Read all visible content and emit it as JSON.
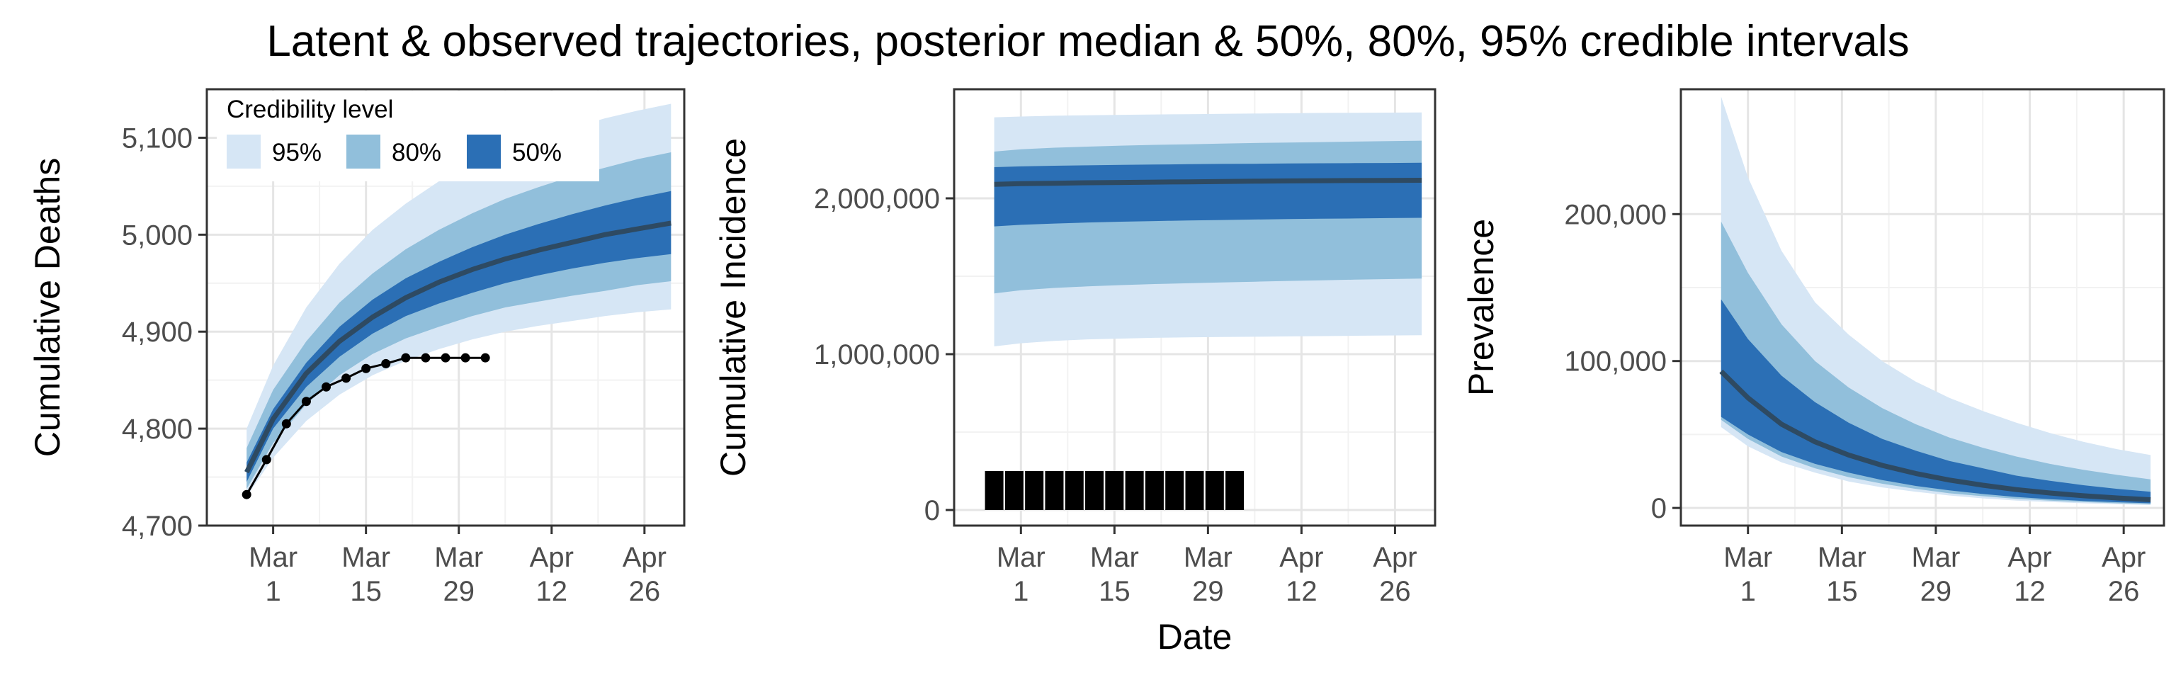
{
  "title": "Latent & observed trajectories, posterior median & 50%, 80%, 95% credible intervals",
  "colors": {
    "band_95": "#d6e6f5",
    "band_80": "#91bfdb",
    "band_50": "#2b6fb5",
    "median": "#2e4a62",
    "observed": "#000000",
    "grid_major": "#e5e5e5",
    "grid_minor": "#f2f2f2",
    "panel_border": "#333333"
  },
  "x_axis": {
    "title": "Date",
    "tick_labels": [
      {
        "line1": "Mar",
        "line2": "1"
      },
      {
        "line1": "Mar",
        "line2": "15"
      },
      {
        "line1": "Mar",
        "line2": "29"
      },
      {
        "line1": "Apr",
        "line2": "12"
      },
      {
        "line1": "Apr",
        "line2": "26"
      }
    ]
  },
  "legend": {
    "title": "Credibility level",
    "placement": "top-left of first panel",
    "items": [
      {
        "label": "95%",
        "color": "#d6e6f5"
      },
      {
        "label": "80%",
        "color": "#91bfdb"
      },
      {
        "label": "50%",
        "color": "#2b6fb5"
      }
    ]
  },
  "chart_data": [
    {
      "type": "area",
      "ylabel": "Cumulative Deaths",
      "xlim": [
        "2020-02-20",
        "2020-05-02"
      ],
      "ylim": [
        4700,
        5150
      ],
      "x_ticks": [
        "2020-03-01",
        "2020-03-15",
        "2020-03-29",
        "2020-04-12",
        "2020-04-26"
      ],
      "y_ticks": [
        4700,
        4800,
        4900,
        5000,
        5100
      ],
      "y_tick_labels": [
        "4,700",
        "4,800",
        "4,900",
        "5,000",
        "5,100"
      ],
      "x": [
        "2020-02-26",
        "2020-03-01",
        "2020-03-06",
        "2020-03-11",
        "2020-03-16",
        "2020-03-21",
        "2020-03-26",
        "2020-03-31",
        "2020-04-05",
        "2020-04-10",
        "2020-04-15",
        "2020-04-20",
        "2020-04-25",
        "2020-04-30"
      ],
      "bands": {
        "95": {
          "lo": [
            4730,
            4770,
            4808,
            4835,
            4855,
            4870,
            4882,
            4892,
            4900,
            4906,
            4911,
            4916,
            4920,
            4923
          ],
          "hi": [
            4800,
            4865,
            4925,
            4970,
            5005,
            5032,
            5055,
            5073,
            5088,
            5100,
            5110,
            5120,
            5128,
            5135
          ]
        },
        "80": {
          "lo": [
            4738,
            4785,
            4825,
            4855,
            4877,
            4893,
            4905,
            4916,
            4925,
            4931,
            4937,
            4942,
            4948,
            4952
          ],
          "hi": [
            4780,
            4840,
            4890,
            4930,
            4960,
            4985,
            5005,
            5022,
            5037,
            5049,
            5060,
            5069,
            5078,
            5085
          ]
        },
        "50": {
          "lo": [
            4745,
            4800,
            4843,
            4874,
            4898,
            4916,
            4929,
            4940,
            4950,
            4958,
            4965,
            4971,
            4976,
            4980
          ],
          "hi": [
            4765,
            4820,
            4868,
            4905,
            4933,
            4955,
            4972,
            4987,
            5000,
            5011,
            5021,
            5030,
            5038,
            5045
          ]
        }
      },
      "median": [
        4755,
        4810,
        4857,
        4890,
        4915,
        4935,
        4951,
        4964,
        4975,
        4984,
        4992,
        5000,
        5006,
        5012
      ],
      "observed": {
        "x": [
          "2020-02-26",
          "2020-02-29",
          "2020-03-03",
          "2020-03-06",
          "2020-03-09",
          "2020-03-12",
          "2020-03-15",
          "2020-03-18",
          "2020-03-21",
          "2020-03-24",
          "2020-03-27",
          "2020-03-30",
          "2020-04-02"
        ],
        "y": [
          4732,
          4768,
          4805,
          4828,
          4843,
          4852,
          4862,
          4867,
          4873,
          4873,
          4873,
          4873,
          4873
        ]
      }
    },
    {
      "type": "area",
      "ylabel": "Cumulative Incidence",
      "xlim": [
        "2020-02-20",
        "2020-05-02"
      ],
      "ylim": [
        -100000,
        2700000
      ],
      "x_ticks": [
        "2020-03-01",
        "2020-03-15",
        "2020-03-29",
        "2020-04-12",
        "2020-04-26"
      ],
      "y_ticks": [
        0,
        1000000,
        2000000
      ],
      "y_tick_labels": [
        "0",
        "1,000,000",
        "2,000,000"
      ],
      "x": [
        "2020-02-26",
        "2020-03-01",
        "2020-03-06",
        "2020-03-11",
        "2020-03-16",
        "2020-03-21",
        "2020-03-26",
        "2020-03-31",
        "2020-04-05",
        "2020-04-10",
        "2020-04-15",
        "2020-04-20",
        "2020-04-25",
        "2020-04-30"
      ],
      "bands": {
        "95": {
          "lo": [
            1050000,
            1070000,
            1085000,
            1095000,
            1100000,
            1105000,
            1108000,
            1110000,
            1112000,
            1114000,
            1116000,
            1118000,
            1120000,
            1122000
          ],
          "hi": [
            2520000,
            2525000,
            2530000,
            2533000,
            2536000,
            2538000,
            2540000,
            2542000,
            2544000,
            2546000,
            2548000,
            2549000,
            2550000,
            2551000
          ]
        },
        "80": {
          "lo": [
            1390000,
            1410000,
            1425000,
            1435000,
            1443000,
            1450000,
            1455000,
            1460000,
            1465000,
            1470000,
            1474000,
            1478000,
            1482000,
            1485000
          ],
          "hi": [
            2300000,
            2315000,
            2325000,
            2332000,
            2338000,
            2343000,
            2347000,
            2351000,
            2355000,
            2358000,
            2361000,
            2364000,
            2367000,
            2370000
          ]
        },
        "50": {
          "lo": [
            1820000,
            1830000,
            1838000,
            1845000,
            1850000,
            1854000,
            1858000,
            1861000,
            1864000,
            1867000,
            1869000,
            1871000,
            1873000,
            1875000
          ],
          "hi": [
            2200000,
            2205000,
            2209000,
            2212000,
            2215000,
            2217000,
            2219000,
            2221000,
            2222000,
            2224000,
            2225000,
            2226000,
            2227000,
            2228000
          ]
        }
      },
      "median": [
        2090000,
        2094000,
        2097000,
        2100000,
        2102000,
        2104000,
        2106000,
        2108000,
        2110000,
        2112000,
        2113000,
        2114000,
        2115000,
        2116000
      ],
      "observed": {
        "type": "bar",
        "x": [
          "2020-02-26",
          "2020-02-29",
          "2020-03-03",
          "2020-03-06",
          "2020-03-09",
          "2020-03-12",
          "2020-03-15",
          "2020-03-18",
          "2020-03-21",
          "2020-03-24",
          "2020-03-27",
          "2020-03-30",
          "2020-04-02"
        ],
        "y": [
          250000,
          250000,
          250000,
          250000,
          250000,
          250000,
          250000,
          250000,
          250000,
          250000,
          250000,
          250000,
          250000
        ]
      }
    },
    {
      "type": "area",
      "ylabel": "Prevalence",
      "xlim": [
        "2020-02-20",
        "2020-05-02"
      ],
      "ylim": [
        -12000,
        285000
      ],
      "x_ticks": [
        "2020-03-01",
        "2020-03-15",
        "2020-03-29",
        "2020-04-12",
        "2020-04-26"
      ],
      "y_ticks": [
        0,
        100000,
        200000
      ],
      "y_tick_labels": [
        "0",
        "100,000",
        "200,000"
      ],
      "x": [
        "2020-02-26",
        "2020-03-01",
        "2020-03-06",
        "2020-03-11",
        "2020-03-16",
        "2020-03-21",
        "2020-03-26",
        "2020-03-31",
        "2020-04-05",
        "2020-04-10",
        "2020-04-15",
        "2020-04-20",
        "2020-04-25",
        "2020-04-30"
      ],
      "bands": {
        "95": {
          "lo": [
            55000,
            42000,
            31000,
            24000,
            18000,
            14000,
            11000,
            8500,
            6500,
            5000,
            4000,
            3200,
            2500,
            2000
          ],
          "hi": [
            280000,
            225000,
            175000,
            140000,
            118000,
            100000,
            86000,
            75000,
            66000,
            58000,
            51000,
            45000,
            40000,
            36000
          ]
        },
        "80": {
          "lo": [
            60000,
            47000,
            35000,
            27000,
            21000,
            16500,
            13000,
            10000,
            8000,
            6200,
            5000,
            4000,
            3200,
            2600
          ],
          "hi": [
            195000,
            160000,
            125000,
            100000,
            82000,
            68000,
            57000,
            48000,
            41000,
            35000,
            30000,
            26000,
            22500,
            19500
          ]
        },
        "50": {
          "lo": [
            62000,
            50000,
            38000,
            30000,
            24000,
            19000,
            15000,
            12000,
            9500,
            7500,
            6000,
            4800,
            3900,
            3200
          ],
          "hi": [
            142000,
            115000,
            90000,
            72000,
            58000,
            47000,
            39000,
            32000,
            27000,
            22000,
            18500,
            15500,
            13000,
            11000
          ]
        }
      },
      "median": [
        93000,
        75000,
        57000,
        45000,
        36000,
        29000,
        23500,
        19000,
        15500,
        12500,
        10200,
        8300,
        6800,
        5600
      ]
    }
  ]
}
